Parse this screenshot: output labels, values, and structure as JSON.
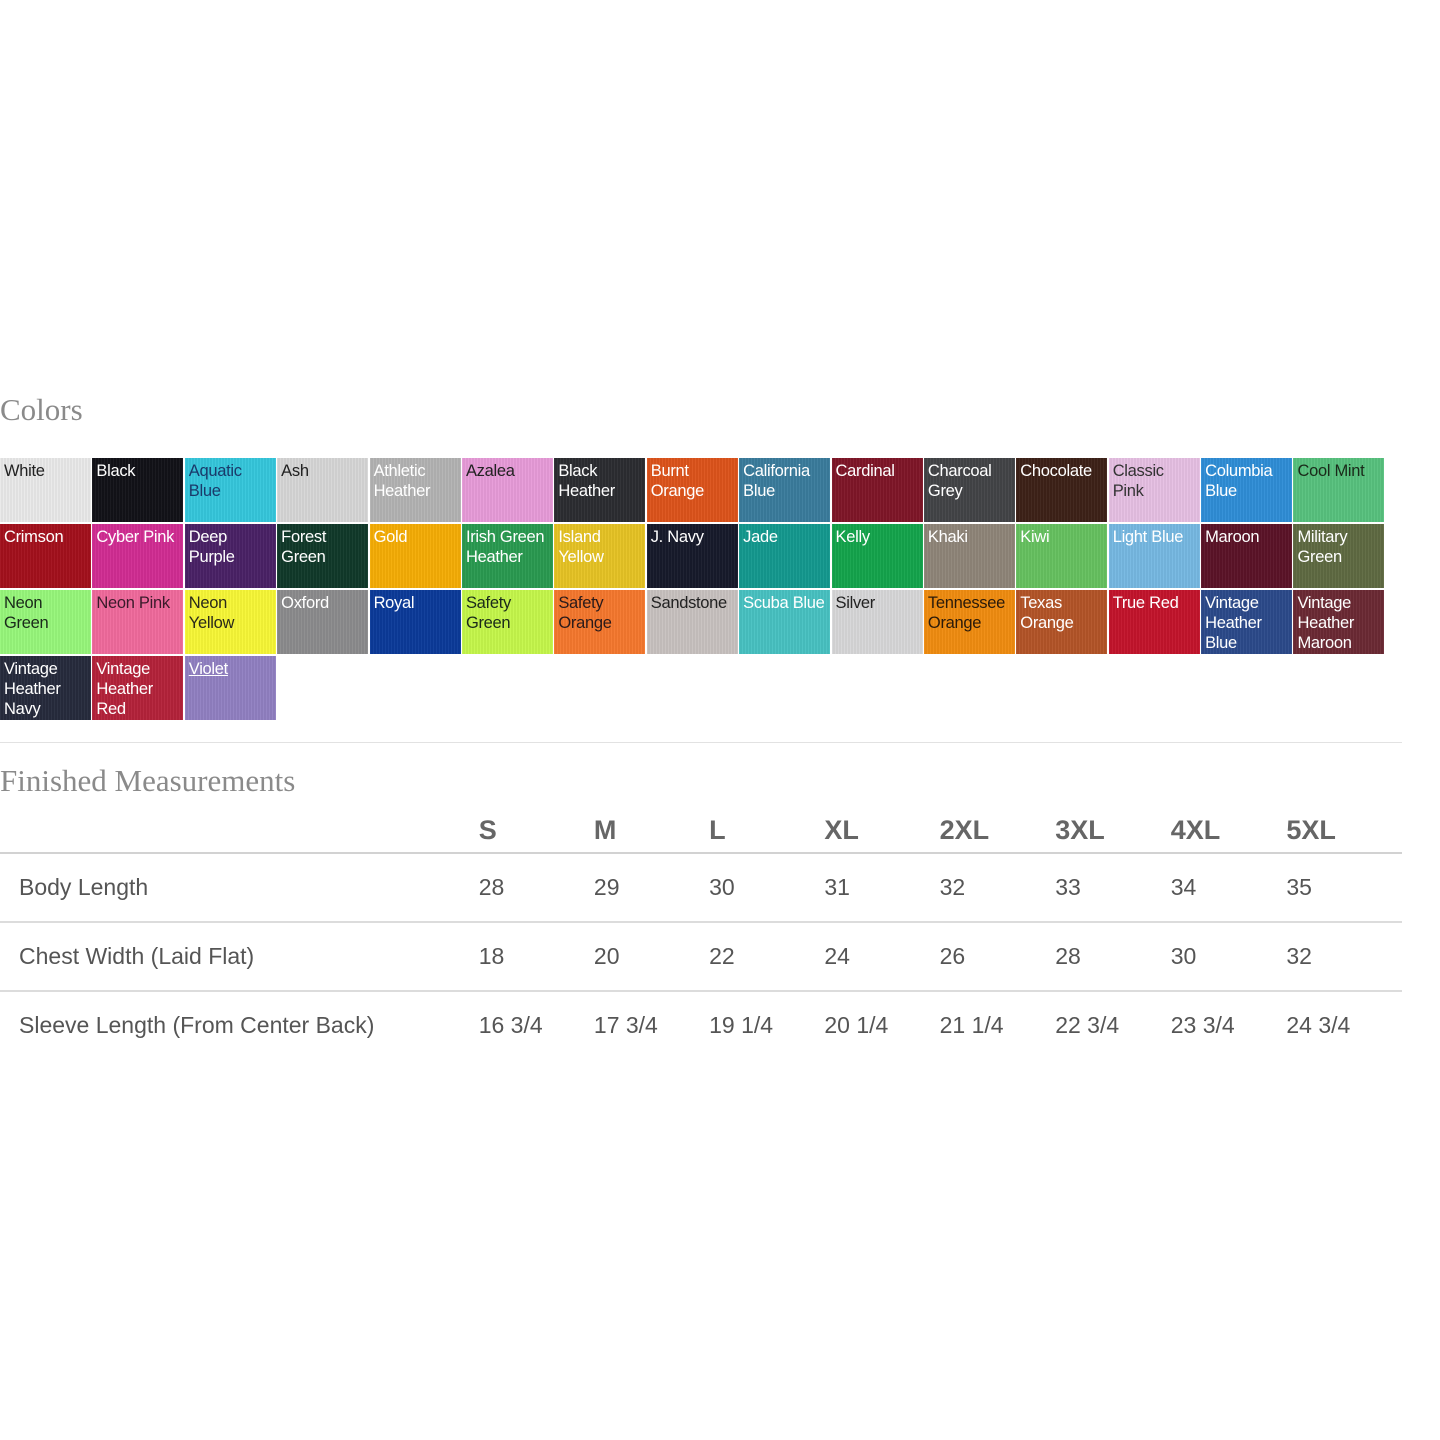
{
  "colors_section": {
    "title": "Colors",
    "swatches": [
      {
        "name": "White",
        "bg": "#e9e9e9",
        "fg": "#222"
      },
      {
        "name": "Black",
        "bg": "#121218",
        "fg": "#fff"
      },
      {
        "name": "Aquatic Blue",
        "bg": "#35c7dc",
        "fg": "#1a3a6a"
      },
      {
        "name": "Ash",
        "bg": "#d6d6d6",
        "fg": "#222"
      },
      {
        "name": "Athletic Heather",
        "bg": "#b3b3b3",
        "fg": "#fff"
      },
      {
        "name": "Azalea",
        "bg": "#e79bd9",
        "fg": "#222"
      },
      {
        "name": "Black Heather",
        "bg": "#2c2d31",
        "fg": "#fff"
      },
      {
        "name": "Burnt Orange",
        "bg": "#dd531b",
        "fg": "#fff"
      },
      {
        "name": "California Blue",
        "bg": "#3a7c9c",
        "fg": "#fff"
      },
      {
        "name": "Cardinal",
        "bg": "#7f1628",
        "fg": "#fff"
      },
      {
        "name": "Charcoal Grey",
        "bg": "#434447",
        "fg": "#fff"
      },
      {
        "name": "Chocolate",
        "bg": "#3d2118",
        "fg": "#fff"
      },
      {
        "name": "Classic Pink",
        "bg": "#e6bfe3",
        "fg": "#333"
      },
      {
        "name": "Columbia Blue",
        "bg": "#2f8ed6",
        "fg": "#fff"
      },
      {
        "name": "Cool Mint",
        "bg": "#57c27e",
        "fg": "#1a2a1a"
      },
      {
        "name": "Crimson",
        "bg": "#a3101c",
        "fg": "#fff"
      },
      {
        "name": "Cyber Pink",
        "bg": "#d12d93",
        "fg": "#fff"
      },
      {
        "name": "Deep Purple",
        "bg": "#4a2166",
        "fg": "#fff"
      },
      {
        "name": "Forest Green",
        "bg": "#11392a",
        "fg": "#fff"
      },
      {
        "name": "Gold",
        "bg": "#f5ad05",
        "fg": "#fff"
      },
      {
        "name": "Irish Green Heather",
        "bg": "#2a9a50",
        "fg": "#fff"
      },
      {
        "name": "Island Yellow",
        "bg": "#e6c324",
        "fg": "#fff"
      },
      {
        "name": "J. Navy",
        "bg": "#171a2b",
        "fg": "#fff"
      },
      {
        "name": "Jade",
        "bg": "#14998f",
        "fg": "#fff"
      },
      {
        "name": "Kelly",
        "bg": "#14a44c",
        "fg": "#fff"
      },
      {
        "name": "Khaki",
        "bg": "#8f8579",
        "fg": "#fff"
      },
      {
        "name": "Kiwi",
        "bg": "#66c160",
        "fg": "#fff"
      },
      {
        "name": "Light Blue",
        "bg": "#76b8e2",
        "fg": "#fff"
      },
      {
        "name": "Maroon",
        "bg": "#5b1328",
        "fg": "#fff"
      },
      {
        "name": "Military Green",
        "bg": "#5f6a42",
        "fg": "#fff"
      },
      {
        "name": "Neon Green",
        "bg": "#97f77b",
        "fg": "#1a2a1a"
      },
      {
        "name": "Neon Pink",
        "bg": "#f06a9c",
        "fg": "#3a1a2a"
      },
      {
        "name": "Neon Yellow",
        "bg": "#f7f736",
        "fg": "#2a2a1a"
      },
      {
        "name": "Oxford",
        "bg": "#8b8b8d",
        "fg": "#fff"
      },
      {
        "name": "Royal",
        "bg": "#0b3a99",
        "fg": "#fff"
      },
      {
        "name": "Safety Green",
        "bg": "#c5f74b",
        "fg": "#1a2a1a"
      },
      {
        "name": "Safety Orange",
        "bg": "#f5782e",
        "fg": "#2a1a1a"
      },
      {
        "name": "Sandstone",
        "bg": "#c8c2c0",
        "fg": "#222"
      },
      {
        "name": "Scuba Blue",
        "bg": "#48c2c2",
        "fg": "#fff"
      },
      {
        "name": "Silver",
        "bg": "#d7d7d9",
        "fg": "#222"
      },
      {
        "name": "Tennessee Orange",
        "bg": "#f08c10",
        "fg": "#2a1a0a"
      },
      {
        "name": "Texas Orange",
        "bg": "#b35428",
        "fg": "#fff"
      },
      {
        "name": "True Red",
        "bg": "#c3142c",
        "fg": "#fff"
      },
      {
        "name": "Vintage Heather Blue",
        "bg": "#2c4a8a",
        "fg": "#fff"
      },
      {
        "name": "Vintage Heather Maroon",
        "bg": "#6b2a34",
        "fg": "#fff"
      },
      {
        "name": "Vintage Heather Navy",
        "bg": "#262b3c",
        "fg": "#fff"
      },
      {
        "name": "Vintage Heather Red",
        "bg": "#b4223a",
        "fg": "#fff"
      },
      {
        "name": "Violet",
        "bg": "#9180c2",
        "fg": "#fff",
        "underlined": true
      }
    ]
  },
  "measurements": {
    "title": "Finished Measurements",
    "sizes": [
      "S",
      "M",
      "L",
      "XL",
      "2XL",
      "3XL",
      "4XL",
      "5XL"
    ],
    "rows": [
      {
        "label": "Body Length",
        "values": [
          "28",
          "29",
          "30",
          "31",
          "32",
          "33",
          "34",
          "35"
        ]
      },
      {
        "label": "Chest Width (Laid Flat)",
        "values": [
          "18",
          "20",
          "22",
          "24",
          "26",
          "28",
          "30",
          "32"
        ]
      },
      {
        "label": "Sleeve Length (From Center Back)",
        "values": [
          "16 3/4",
          "17 3/4",
          "19 1/4",
          "20 1/4",
          "21 1/4",
          "22 3/4",
          "23 3/4",
          "24 3/4"
        ]
      }
    ]
  }
}
